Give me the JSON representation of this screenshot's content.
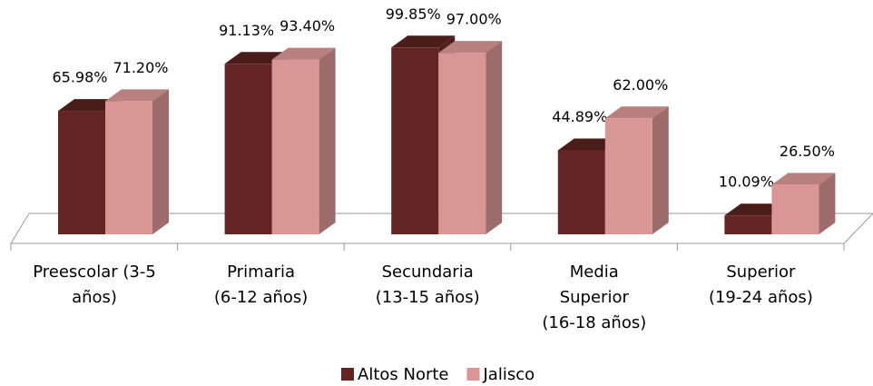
{
  "chart_data": {
    "type": "bar3d",
    "categories": [
      "Preescolar (3-5\naños)",
      "Primaria\n(6-12 años)",
      "Secundaria\n(13-15 años)",
      "Media\nSuperior\n(16-18 años)",
      "Superior\n(19-24 años)"
    ],
    "series": [
      {
        "name": "Altos Norte",
        "color": "#632523",
        "values": [
          65.98,
          91.13,
          99.85,
          44.89,
          10.09
        ],
        "value_labels": [
          "65.98%",
          "91.13%",
          "99.85%",
          "44.89%",
          "10.09%"
        ]
      },
      {
        "name": "Jalisco",
        "color": "#d99694",
        "values": [
          71.2,
          93.4,
          97.0,
          62.0,
          26.5
        ],
        "value_labels": [
          "71.20%",
          "93.40%",
          "97.00%",
          "62.00%",
          "26.50%"
        ]
      }
    ],
    "legend": "bottom"
  }
}
